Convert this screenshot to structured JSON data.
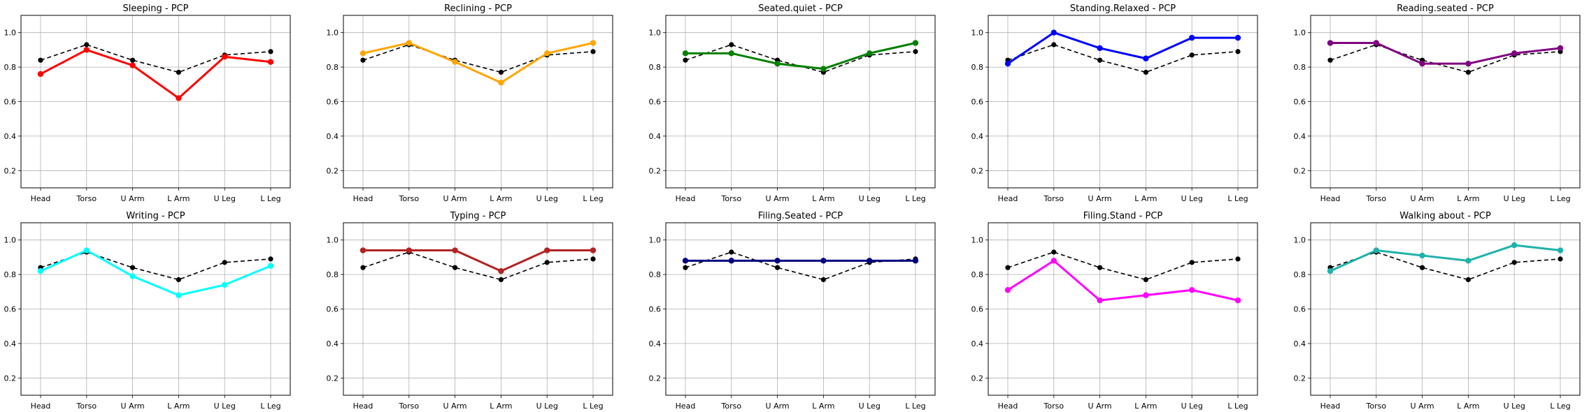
{
  "chart_data": [
    {
      "type": "line",
      "title": "Sleeping - PCP",
      "categories": [
        "Head",
        "Torso",
        "U Arm",
        "L Arm",
        "U Leg",
        "L Leg"
      ],
      "series": [
        {
          "values": [
            0.76,
            0.9,
            0.81,
            0.62,
            0.86,
            0.83
          ],
          "color": "#ff0000",
          "style": "solid"
        },
        {
          "values": [
            0.84,
            0.93,
            0.84,
            0.77,
            0.87,
            0.89
          ],
          "color": "#000000",
          "style": "dashed"
        }
      ],
      "ylim": [
        0.1,
        1.1
      ],
      "yticks": [
        "0.2",
        "0.4",
        "0.6",
        "0.8",
        "1.0"
      ],
      "grid": true
    },
    {
      "type": "line",
      "title": "Reclining - PCP",
      "categories": [
        "Head",
        "Torso",
        "U Arm",
        "L Arm",
        "U Leg",
        "L Leg"
      ],
      "series": [
        {
          "values": [
            0.88,
            0.94,
            0.83,
            0.71,
            0.88,
            0.94
          ],
          "color": "#ffa500",
          "style": "solid"
        },
        {
          "values": [
            0.84,
            0.93,
            0.84,
            0.77,
            0.87,
            0.89
          ],
          "color": "#000000",
          "style": "dashed"
        }
      ],
      "ylim": [
        0.1,
        1.1
      ],
      "yticks": [
        "0.2",
        "0.4",
        "0.6",
        "0.8",
        "1.0"
      ],
      "grid": true
    },
    {
      "type": "line",
      "title": "Seated.quiet - PCP",
      "categories": [
        "Head",
        "Torso",
        "U Arm",
        "L Arm",
        "U Leg",
        "L Leg"
      ],
      "series": [
        {
          "values": [
            0.88,
            0.88,
            0.82,
            0.79,
            0.88,
            0.94
          ],
          "color": "#008000",
          "style": "solid"
        },
        {
          "values": [
            0.84,
            0.93,
            0.84,
            0.77,
            0.87,
            0.89
          ],
          "color": "#000000",
          "style": "dashed"
        }
      ],
      "ylim": [
        0.1,
        1.1
      ],
      "yticks": [
        "0.2",
        "0.4",
        "0.6",
        "0.8",
        "1.0"
      ],
      "grid": true
    },
    {
      "type": "line",
      "title": "Standing.Relaxed - PCP",
      "categories": [
        "Head",
        "Torso",
        "U Arm",
        "L Arm",
        "U Leg",
        "L Leg"
      ],
      "series": [
        {
          "values": [
            0.82,
            1.0,
            0.91,
            0.85,
            0.97,
            0.97
          ],
          "color": "#0000ff",
          "style": "solid"
        },
        {
          "values": [
            0.84,
            0.93,
            0.84,
            0.77,
            0.87,
            0.89
          ],
          "color": "#000000",
          "style": "dashed"
        }
      ],
      "ylim": [
        0.1,
        1.1
      ],
      "yticks": [
        "0.2",
        "0.4",
        "0.6",
        "0.8",
        "1.0"
      ],
      "grid": true
    },
    {
      "type": "line",
      "title": "Reading.seated - PCP",
      "categories": [
        "Head",
        "Torso",
        "U Arm",
        "L Arm",
        "U Leg",
        "L Leg"
      ],
      "series": [
        {
          "values": [
            0.94,
            0.94,
            0.82,
            0.82,
            0.88,
            0.91
          ],
          "color": "#800080",
          "style": "solid"
        },
        {
          "values": [
            0.84,
            0.93,
            0.84,
            0.77,
            0.87,
            0.89
          ],
          "color": "#000000",
          "style": "dashed"
        }
      ],
      "ylim": [
        0.1,
        1.1
      ],
      "yticks": [
        "0.2",
        "0.4",
        "0.6",
        "0.8",
        "1.0"
      ],
      "grid": true
    },
    {
      "type": "line",
      "title": "Writing - PCP",
      "categories": [
        "Head",
        "Torso",
        "U Arm",
        "L Arm",
        "U Leg",
        "L Leg"
      ],
      "series": [
        {
          "values": [
            0.82,
            0.94,
            0.79,
            0.68,
            0.74,
            0.85
          ],
          "color": "#00ffff",
          "style": "solid"
        },
        {
          "values": [
            0.84,
            0.93,
            0.84,
            0.77,
            0.87,
            0.89
          ],
          "color": "#000000",
          "style": "dashed"
        }
      ],
      "ylim": [
        0.1,
        1.1
      ],
      "yticks": [
        "0.2",
        "0.4",
        "0.6",
        "0.8",
        "1.0"
      ],
      "grid": true
    },
    {
      "type": "line",
      "title": "Typing - PCP",
      "categories": [
        "Head",
        "Torso",
        "U Arm",
        "L Arm",
        "U Leg",
        "L Leg"
      ],
      "series": [
        {
          "values": [
            0.94,
            0.94,
            0.94,
            0.82,
            0.94,
            0.94
          ],
          "color": "#b22222",
          "style": "solid"
        },
        {
          "values": [
            0.84,
            0.93,
            0.84,
            0.77,
            0.87,
            0.89
          ],
          "color": "#000000",
          "style": "dashed"
        }
      ],
      "ylim": [
        0.1,
        1.1
      ],
      "yticks": [
        "0.2",
        "0.4",
        "0.6",
        "0.8",
        "1.0"
      ],
      "grid": true
    },
    {
      "type": "line",
      "title": "Filing.Seated - PCP",
      "categories": [
        "Head",
        "Torso",
        "U Arm",
        "L Arm",
        "U Leg",
        "L Leg"
      ],
      "series": [
        {
          "values": [
            0.88,
            0.88,
            0.88,
            0.88,
            0.88,
            0.88
          ],
          "color": "#000080",
          "style": "solid"
        },
        {
          "values": [
            0.84,
            0.93,
            0.84,
            0.77,
            0.87,
            0.89
          ],
          "color": "#000000",
          "style": "dashed"
        }
      ],
      "ylim": [
        0.1,
        1.1
      ],
      "yticks": [
        "0.2",
        "0.4",
        "0.6",
        "0.8",
        "1.0"
      ],
      "grid": true
    },
    {
      "type": "line",
      "title": "Filing.Stand - PCP",
      "categories": [
        "Head",
        "Torso",
        "U Arm",
        "L Arm",
        "U Leg",
        "L Leg"
      ],
      "series": [
        {
          "values": [
            0.71,
            0.88,
            0.65,
            0.68,
            0.71,
            0.65
          ],
          "color": "#ff00ff",
          "style": "solid"
        },
        {
          "values": [
            0.84,
            0.93,
            0.84,
            0.77,
            0.87,
            0.89
          ],
          "color": "#000000",
          "style": "dashed"
        }
      ],
      "ylim": [
        0.1,
        1.1
      ],
      "yticks": [
        "0.2",
        "0.4",
        "0.6",
        "0.8",
        "1.0"
      ],
      "grid": true
    },
    {
      "type": "line",
      "title": "Walking about - PCP",
      "categories": [
        "Head",
        "Torso",
        "U Arm",
        "L Arm",
        "U Leg",
        "L Leg"
      ],
      "series": [
        {
          "values": [
            0.82,
            0.94,
            0.91,
            0.88,
            0.97,
            0.94
          ],
          "color": "#20b2aa",
          "style": "solid"
        },
        {
          "values": [
            0.84,
            0.93,
            0.84,
            0.77,
            0.87,
            0.89
          ],
          "color": "#000000",
          "style": "dashed"
        }
      ],
      "ylim": [
        0.1,
        1.1
      ],
      "yticks": [
        "0.2",
        "0.4",
        "0.6",
        "0.8",
        "1.0"
      ],
      "grid": true
    }
  ]
}
